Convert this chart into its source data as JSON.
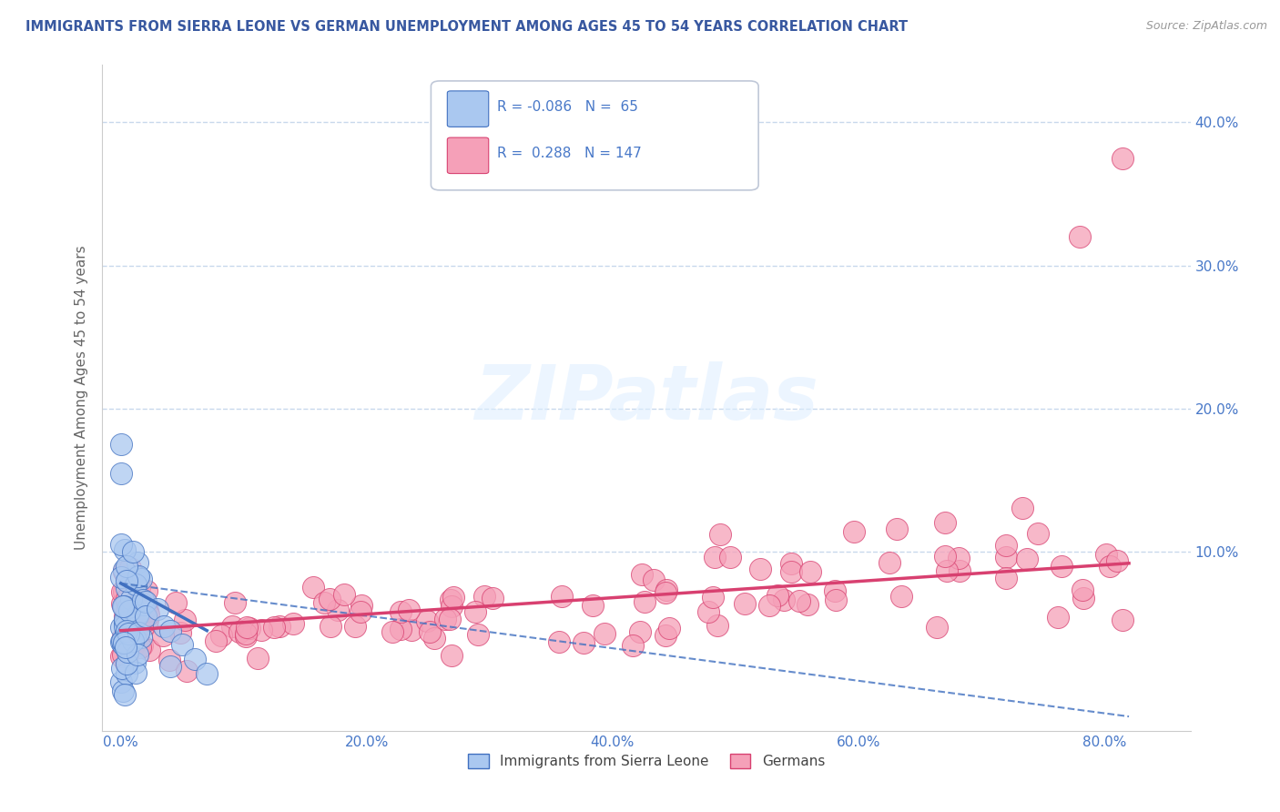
{
  "title": "IMMIGRANTS FROM SIERRA LEONE VS GERMAN UNEMPLOYMENT AMONG AGES 45 TO 54 YEARS CORRELATION CHART",
  "source": "Source: ZipAtlas.com",
  "ylabel": "Unemployment Among Ages 45 to 54 years",
  "x_ticks": [
    "0.0%",
    "20.0%",
    "40.0%",
    "60.0%",
    "80.0%"
  ],
  "x_tick_vals": [
    0.0,
    0.2,
    0.4,
    0.6,
    0.8
  ],
  "y_ticks": [
    "10.0%",
    "20.0%",
    "30.0%",
    "40.0%"
  ],
  "y_tick_vals": [
    0.1,
    0.2,
    0.3,
    0.4
  ],
  "xlim": [
    -0.015,
    0.87
  ],
  "ylim": [
    -0.025,
    0.44
  ],
  "legend_label1": "Immigrants from Sierra Leone",
  "legend_label2": "Germans",
  "R1": "-0.086",
  "N1": "65",
  "R2": "0.288",
  "N2": "147",
  "color_blue": "#aac8f0",
  "color_pink": "#f5a0b8",
  "color_blue_dark": "#4070c0",
  "color_pink_dark": "#d84070",
  "background_color": "#ffffff",
  "grid_color": "#c8d8ec",
  "title_color": "#3858a0",
  "tick_color": "#4878c8",
  "ylabel_color": "#666666"
}
